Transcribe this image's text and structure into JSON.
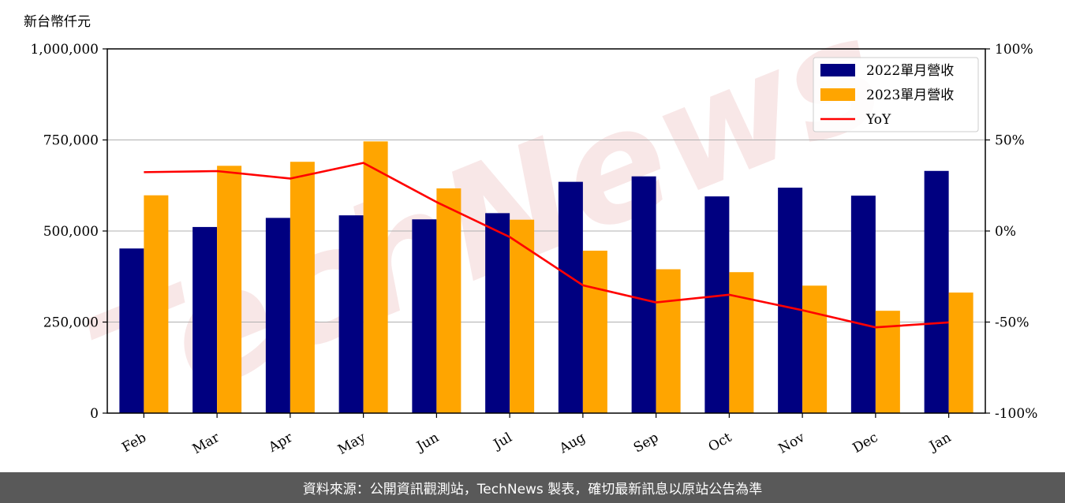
{
  "chart_data": {
    "type": "bar",
    "unit_label": "新台幣仟元",
    "categories": [
      "Feb",
      "Mar",
      "Apr",
      "May",
      "Jun",
      "Jul",
      "Aug",
      "Sep",
      "Oct",
      "Nov",
      "Dec",
      "Jan"
    ],
    "series": [
      {
        "name": "2022單月營收",
        "type": "bar",
        "axis": "left",
        "color": "#000080",
        "values": [
          452000,
          511000,
          536000,
          543000,
          532000,
          549000,
          635000,
          650000,
          595000,
          619000,
          597000,
          665000
        ]
      },
      {
        "name": "2023單月營收",
        "type": "bar",
        "axis": "left",
        "color": "#ffa500",
        "values": [
          598000,
          679000,
          690000,
          746000,
          617000,
          531000,
          446000,
          395000,
          387000,
          350000,
          281000,
          331000
        ]
      },
      {
        "name": "YoY",
        "type": "line",
        "axis": "right",
        "color": "#ff0000",
        "values": [
          32.3,
          32.9,
          28.8,
          37.4,
          15.9,
          -3.3,
          -29.8,
          -39.2,
          -35.0,
          -43.5,
          -52.9,
          -50.2
        ]
      }
    ],
    "y_left": {
      "min": 0,
      "max": 1000000,
      "ticks": [
        0,
        250000,
        500000,
        750000,
        1000000
      ],
      "tick_labels": [
        "0",
        "250,000",
        "500,000",
        "750,000",
        "1,000,000"
      ]
    },
    "y_right": {
      "min": -100,
      "max": 100,
      "ticks": [
        -100,
        -50,
        0,
        50,
        100
      ],
      "tick_labels": [
        "-100%",
        "-50%",
        "0%",
        "50%",
        "100%"
      ]
    },
    "grid": "horizontal",
    "legend_position": "top-right"
  },
  "watermark": "TechNews",
  "footer": {
    "text": "資料來源：公開資訊觀測站，TechNews 製表，確切最新訊息以原站公告為準"
  }
}
